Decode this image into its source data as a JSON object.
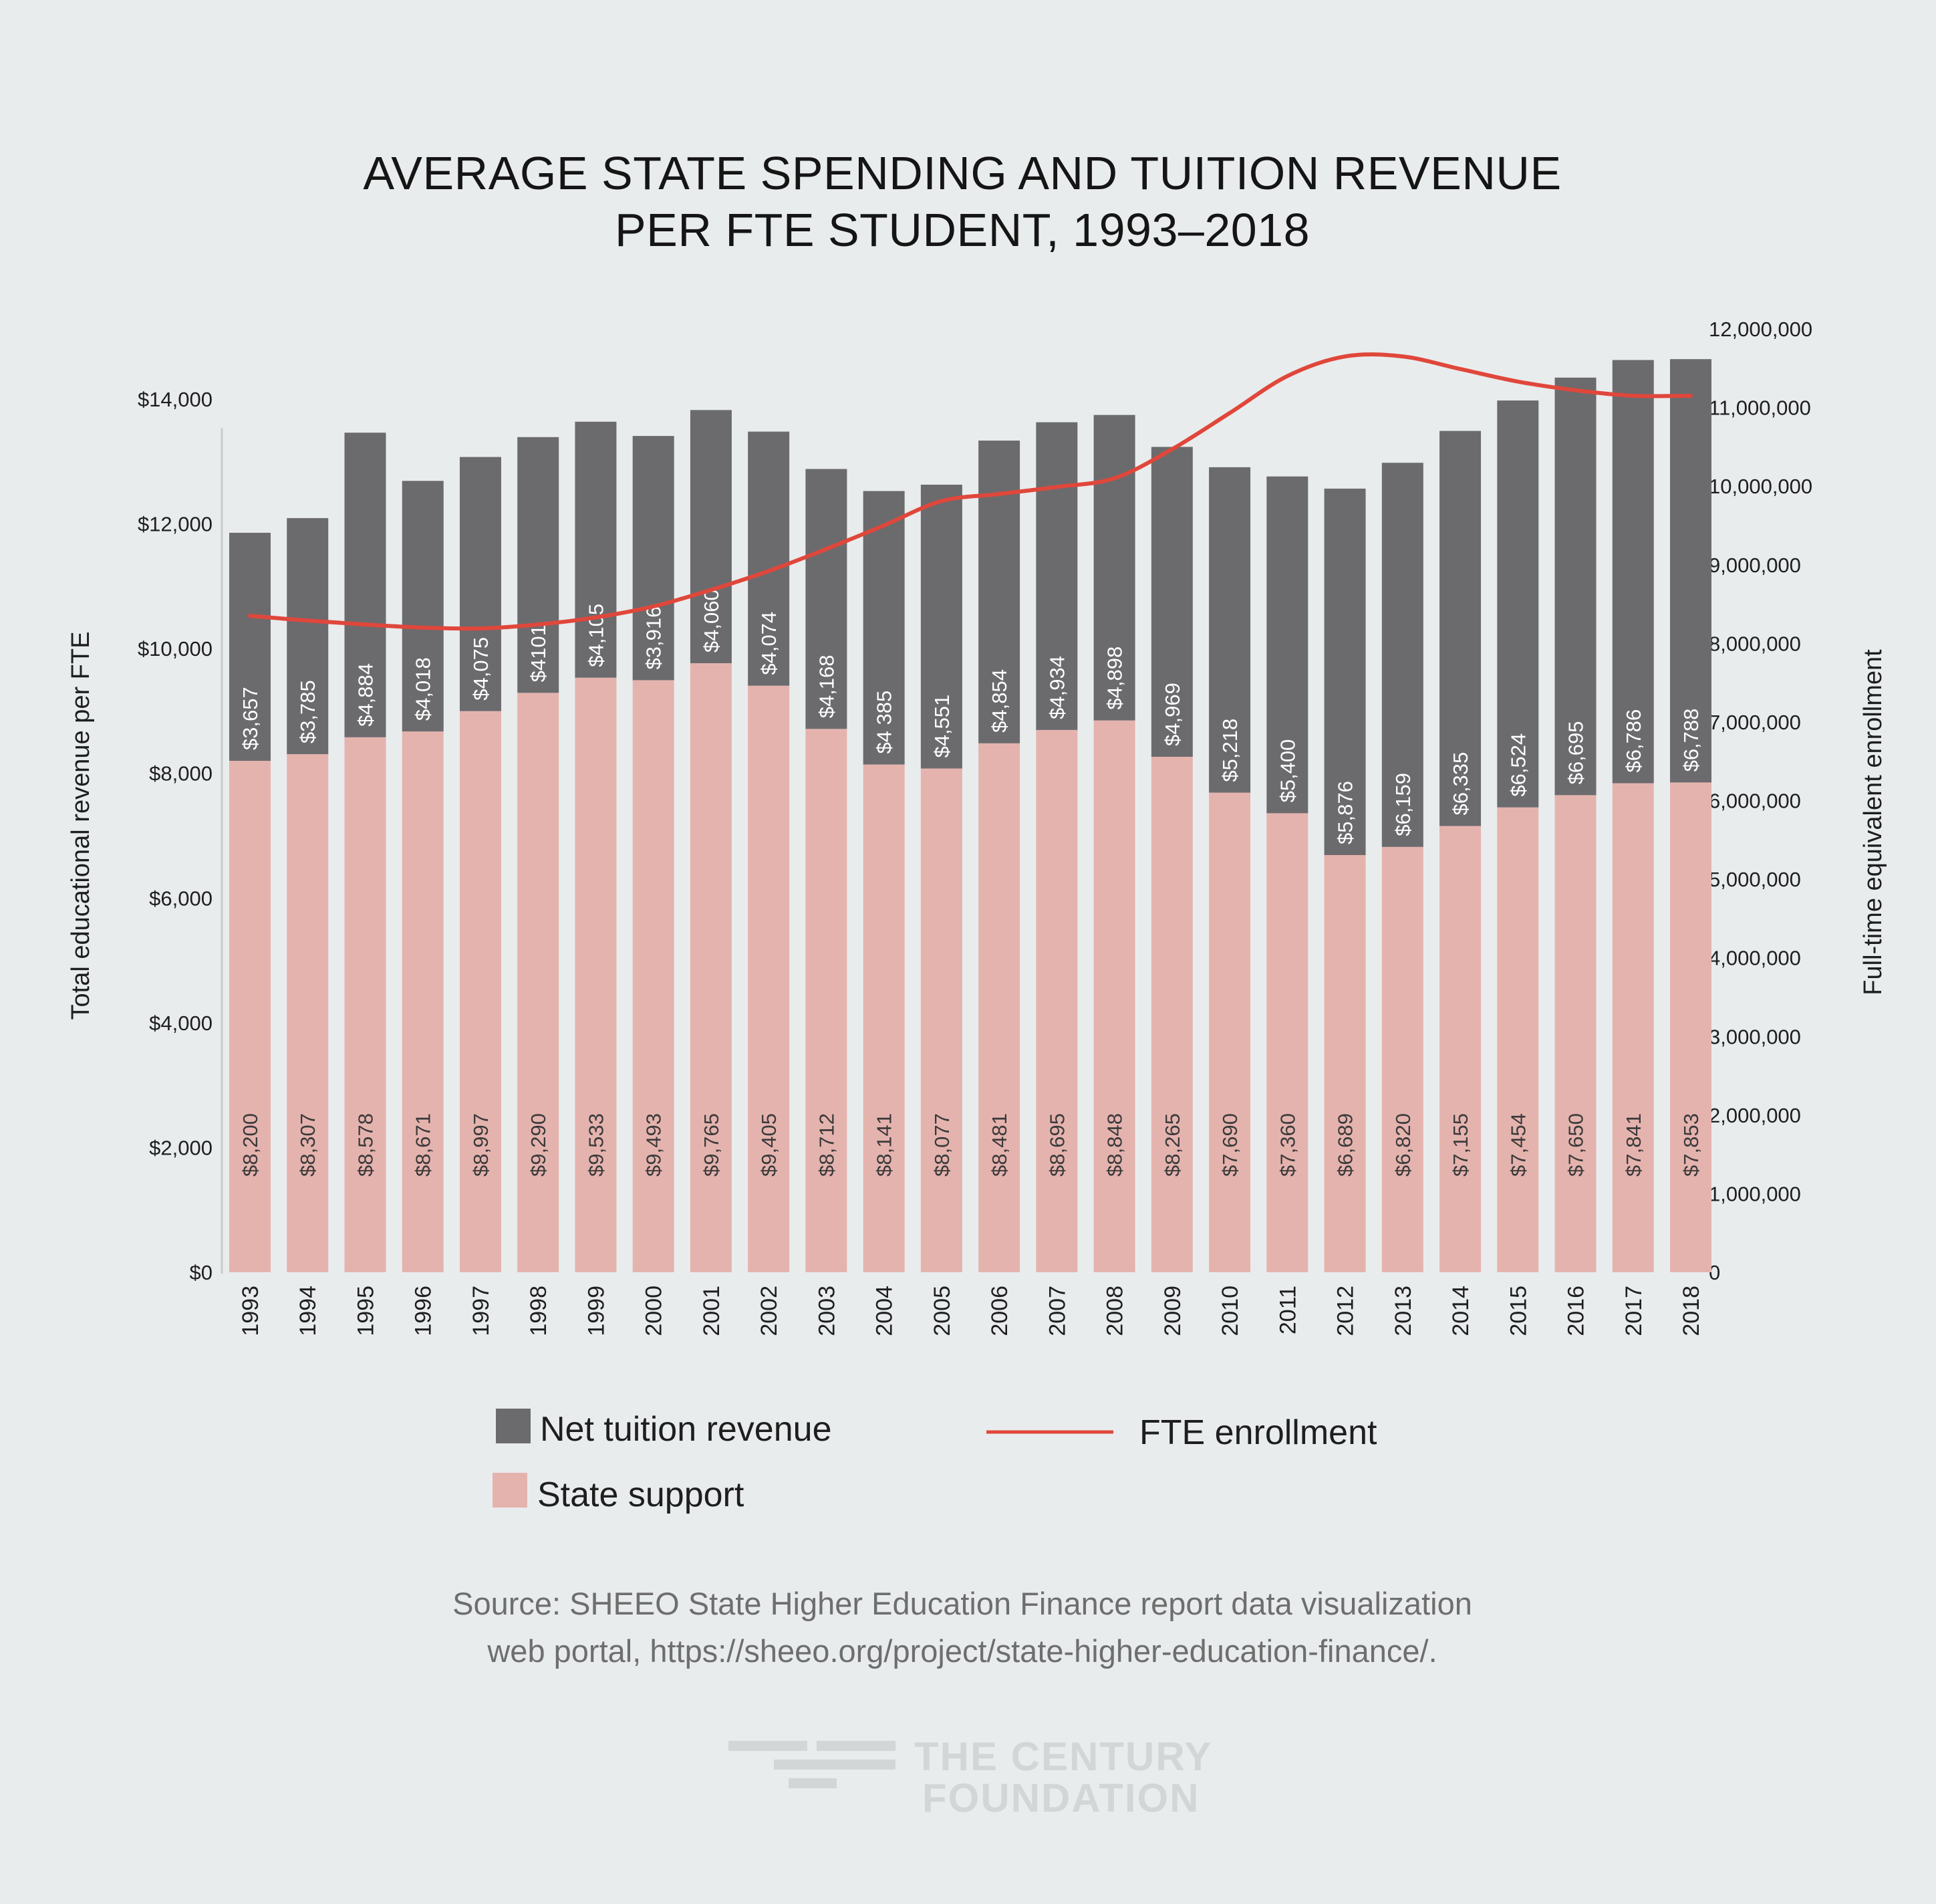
{
  "title_lines": [
    "AVERAGE STATE SPENDING AND TUITION REVENUE",
    "PER FTE STUDENT, 1993–2018"
  ],
  "colors": {
    "tuition": "#6b6b6e",
    "state": "#e5b3ae",
    "enrollment": "#e0473b",
    "background": "#e9eced"
  },
  "chart_data": {
    "type": "bar",
    "stacked": true,
    "title": "AVERAGE STATE SPENDING AND TUITION REVENUE PER FTE STUDENT, 1993–2018",
    "categories": [
      "1993",
      "1994",
      "1995",
      "1996",
      "1997",
      "1998",
      "1999",
      "2000",
      "2001",
      "2002",
      "2003",
      "2004",
      "2005",
      "2006",
      "2007",
      "2008",
      "2009",
      "2010",
      "2011",
      "2012",
      "2013",
      "2014",
      "2015",
      "2016",
      "2017",
      "2018"
    ],
    "series": [
      {
        "name": "State support",
        "type": "bar",
        "axis": "left",
        "values": [
          8200,
          8307,
          8578,
          8671,
          8997,
          9290,
          9533,
          9493,
          9765,
          9405,
          8712,
          8141,
          8077,
          8481,
          8695,
          8848,
          8265,
          7690,
          7360,
          6689,
          6820,
          7155,
          7454,
          7650,
          7841,
          7853
        ],
        "labels": [
          "$8,200",
          "$8,307",
          "$8,578",
          "$8,671",
          "$8,997",
          "$9,290",
          "$9,533",
          "$9,493",
          "$9,765",
          "$9,405",
          "$8,712",
          "$8,141",
          "$8,077",
          "$8,481",
          "$8,695",
          "$8,848",
          "$8,265",
          "$7,690",
          "$7,360",
          "$6,689",
          "$6,820",
          "$7,155",
          "$7,454",
          "$7,650",
          "$7,841",
          "$7,853"
        ]
      },
      {
        "name": "Net tuition revenue",
        "type": "bar",
        "axis": "left",
        "values": [
          3657,
          3785,
          4884,
          4018,
          4075,
          4101,
          4105,
          3916,
          4060,
          4074,
          4168,
          4385,
          4551,
          4854,
          4934,
          4898,
          4969,
          5218,
          5400,
          5876,
          6159,
          6335,
          6524,
          6695,
          6786,
          6788
        ],
        "labels": [
          "$3,657",
          "$3,785",
          "$4,884",
          "$4,018",
          "$4,075",
          "$4101",
          "$4,105",
          "$3,916",
          "$4,060",
          "$4,074",
          "$4,168",
          "$4 385",
          "$4,551",
          "$4,854",
          "$4,934",
          "$4,898",
          "$4,969",
          "$5,218",
          "$5,400",
          "$5,876",
          "$6,159",
          "$6,335",
          "$6,524",
          "$6,695",
          "$6,786",
          "$6,788"
        ]
      },
      {
        "name": "FTE enrollment",
        "type": "line",
        "axis": "right",
        "values": [
          8350000,
          8290000,
          8240000,
          8200000,
          8190000,
          8240000,
          8330000,
          8470000,
          8680000,
          8920000,
          9200000,
          9500000,
          9810000,
          9900000,
          9990000,
          10100000,
          10470000,
          10930000,
          11400000,
          11650000,
          11650000,
          11490000,
          11330000,
          11220000,
          11150000,
          11150000
        ]
      }
    ],
    "left_axis": {
      "label": "Total educational revenue per FTE",
      "ticks": [
        "$0",
        "$2,000",
        "$4,000",
        "$6,000",
        "$8,000",
        "$10,000",
        "$12,000",
        "$14,000"
      ],
      "tick_values": [
        0,
        2000,
        4000,
        6000,
        8000,
        10000,
        12000,
        14000
      ]
    },
    "right_axis": {
      "label": "Full-time equivalent enrollment",
      "ticks": [
        "0",
        "1,000,000",
        "2,000,000",
        "3,000,000",
        "4,000,000",
        "5,000,000",
        "6,000,000",
        "7,000,000",
        "8,000,000",
        "9,000,000",
        "10,000,000",
        "11,000,000",
        "12,000,000"
      ],
      "tick_values": [
        0,
        1000000,
        2000000,
        3000000,
        4000000,
        5000000,
        6000000,
        7000000,
        8000000,
        9000000,
        10000000,
        11000000,
        12000000
      ]
    },
    "legend": {
      "position": "bottom",
      "items": [
        "Net tuition revenue",
        "State support",
        "FTE enrollment"
      ]
    }
  },
  "source_lines": [
    "Source: SHEEO State Higher Education Finance report data visualization",
    "web portal, https://sheeo.org/project/state-higher-education-finance/."
  ],
  "logo_lines": [
    "THE CENTURY",
    "FOUNDATION"
  ]
}
